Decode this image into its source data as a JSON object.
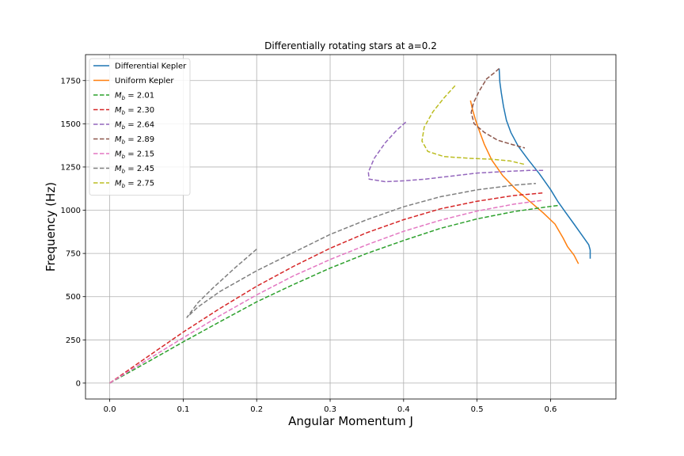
{
  "chart_data": {
    "type": "line",
    "title": "Differentially rotating stars at a=0.2",
    "xlabel": "Angular Momentum J",
    "ylabel": "Frequency (Hz)",
    "xlim": [
      -0.033,
      0.689
    ],
    "ylim": [
      -92,
      1900
    ],
    "xticks": [
      0.0,
      0.1,
      0.2,
      0.3,
      0.4,
      0.5,
      0.6
    ],
    "xtick_labels": [
      "0.0",
      "0.1",
      "0.2",
      "0.3",
      "0.4",
      "0.5",
      "0.6"
    ],
    "yticks": [
      0,
      250,
      500,
      750,
      1000,
      1250,
      1500,
      1750
    ],
    "ytick_labels": [
      "0",
      "250",
      "500",
      "750",
      "1000",
      "1250",
      "1500",
      "1750"
    ],
    "grid": true,
    "legend_position": "upper-left",
    "series": [
      {
        "name": "Differential Kepler",
        "legend_text": "Differential Kepler",
        "color": "#1f77b4",
        "style": "solid",
        "points": [
          [
            0.53,
            1820
          ],
          [
            0.531,
            1740
          ],
          [
            0.533,
            1680
          ],
          [
            0.536,
            1600
          ],
          [
            0.54,
            1520
          ],
          [
            0.546,
            1450
          ],
          [
            0.556,
            1370
          ],
          [
            0.57,
            1290
          ],
          [
            0.585,
            1210
          ],
          [
            0.6,
            1120
          ],
          [
            0.61,
            1050
          ],
          [
            0.62,
            990
          ],
          [
            0.632,
            920
          ],
          [
            0.642,
            860
          ],
          [
            0.652,
            800
          ],
          [
            0.654,
            770
          ],
          [
            0.654,
            720
          ]
        ]
      },
      {
        "name": "Uniform Kepler",
        "legend_text": "Uniform Kepler",
        "color": "#ff7f0e",
        "style": "solid",
        "points": [
          [
            0.491,
            1635
          ],
          [
            0.494,
            1580
          ],
          [
            0.498,
            1520
          ],
          [
            0.503,
            1460
          ],
          [
            0.51,
            1380
          ],
          [
            0.52,
            1290
          ],
          [
            0.535,
            1200
          ],
          [
            0.553,
            1120
          ],
          [
            0.572,
            1050
          ],
          [
            0.59,
            985
          ],
          [
            0.606,
            920
          ],
          [
            0.617,
            840
          ],
          [
            0.623,
            790
          ],
          [
            0.632,
            740
          ],
          [
            0.638,
            690
          ]
        ]
      },
      {
        "name": "M_b = 2.01",
        "legend_prefix": "M",
        "legend_sub": "b",
        "legend_suffix": " = 2.01",
        "color": "#2ca02c",
        "style": "dashed",
        "points": [
          [
            0.0,
            0
          ],
          [
            0.05,
            118
          ],
          [
            0.1,
            238
          ],
          [
            0.15,
            355
          ],
          [
            0.2,
            470
          ],
          [
            0.25,
            570
          ],
          [
            0.3,
            665
          ],
          [
            0.35,
            750
          ],
          [
            0.4,
            825
          ],
          [
            0.45,
            895
          ],
          [
            0.5,
            950
          ],
          [
            0.55,
            992
          ],
          [
            0.6,
            1022
          ],
          [
            0.61,
            1027
          ]
        ]
      },
      {
        "name": "M_b = 2.30",
        "legend_prefix": "M",
        "legend_sub": "b",
        "legend_suffix": " = 2.30",
        "color": "#d62728",
        "style": "dashed",
        "points": [
          [
            0.0,
            0
          ],
          [
            0.05,
            148
          ],
          [
            0.1,
            295
          ],
          [
            0.15,
            432
          ],
          [
            0.2,
            560
          ],
          [
            0.25,
            675
          ],
          [
            0.3,
            780
          ],
          [
            0.35,
            870
          ],
          [
            0.4,
            945
          ],
          [
            0.45,
            1008
          ],
          [
            0.5,
            1052
          ],
          [
            0.55,
            1085
          ],
          [
            0.59,
            1100
          ]
        ]
      },
      {
        "name": "M_b = 2.64",
        "legend_prefix": "M",
        "legend_sub": "b",
        "legend_suffix": " = 2.64",
        "color": "#9467bd",
        "style": "dashed",
        "points": [
          [
            0.403,
            1510
          ],
          [
            0.39,
            1460
          ],
          [
            0.375,
            1390
          ],
          [
            0.36,
            1300
          ],
          [
            0.352,
            1220
          ],
          [
            0.353,
            1180
          ],
          [
            0.375,
            1165
          ],
          [
            0.4,
            1170
          ],
          [
            0.43,
            1180
          ],
          [
            0.47,
            1200
          ],
          [
            0.5,
            1215
          ],
          [
            0.54,
            1224
          ],
          [
            0.57,
            1230
          ],
          [
            0.59,
            1230
          ]
        ]
      },
      {
        "name": "M_b = 2.89",
        "legend_prefix": "M",
        "legend_sub": "b",
        "legend_suffix": " = 2.89",
        "color": "#8c564b",
        "style": "dashed",
        "points": [
          [
            0.53,
            1820
          ],
          [
            0.525,
            1800
          ],
          [
            0.513,
            1760
          ],
          [
            0.503,
            1690
          ],
          [
            0.495,
            1620
          ],
          [
            0.492,
            1565
          ],
          [
            0.496,
            1500
          ],
          [
            0.51,
            1450
          ],
          [
            0.528,
            1405
          ],
          [
            0.548,
            1380
          ],
          [
            0.565,
            1360
          ]
        ]
      },
      {
        "name": "M_b = 2.15",
        "legend_prefix": "M",
        "legend_sub": "b",
        "legend_suffix": " = 2.15",
        "color": "#e377c2",
        "style": "dashed",
        "points": [
          [
            0.0,
            0
          ],
          [
            0.05,
            132
          ],
          [
            0.1,
            262
          ],
          [
            0.15,
            390
          ],
          [
            0.2,
            510
          ],
          [
            0.25,
            620
          ],
          [
            0.3,
            715
          ],
          [
            0.35,
            800
          ],
          [
            0.4,
            878
          ],
          [
            0.45,
            942
          ],
          [
            0.5,
            995
          ],
          [
            0.55,
            1035
          ],
          [
            0.59,
            1058
          ]
        ]
      },
      {
        "name": "M_b = 2.45",
        "legend_prefix": "M",
        "legend_sub": "b",
        "legend_suffix": " = 2.45",
        "color": "#7f7f7f",
        "style": "dashed",
        "points": [
          [
            0.2,
            775
          ],
          [
            0.17,
            665
          ],
          [
            0.14,
            548
          ],
          [
            0.12,
            465
          ],
          [
            0.105,
            380
          ],
          [
            0.12,
            440
          ],
          [
            0.15,
            530
          ],
          [
            0.2,
            650
          ],
          [
            0.25,
            755
          ],
          [
            0.3,
            860
          ],
          [
            0.35,
            945
          ],
          [
            0.4,
            1020
          ],
          [
            0.45,
            1078
          ],
          [
            0.5,
            1118
          ],
          [
            0.55,
            1145
          ],
          [
            0.58,
            1155
          ]
        ]
      },
      {
        "name": "M_b = 2.75",
        "legend_prefix": "M",
        "legend_sub": "b",
        "legend_suffix": " = 2.75",
        "color": "#bcbd22",
        "style": "dashed",
        "points": [
          [
            0.47,
            1720
          ],
          [
            0.455,
            1650
          ],
          [
            0.44,
            1570
          ],
          [
            0.428,
            1480
          ],
          [
            0.425,
            1400
          ],
          [
            0.433,
            1340
          ],
          [
            0.455,
            1310
          ],
          [
            0.49,
            1300
          ],
          [
            0.52,
            1295
          ],
          [
            0.545,
            1285
          ],
          [
            0.565,
            1265
          ]
        ]
      }
    ]
  }
}
